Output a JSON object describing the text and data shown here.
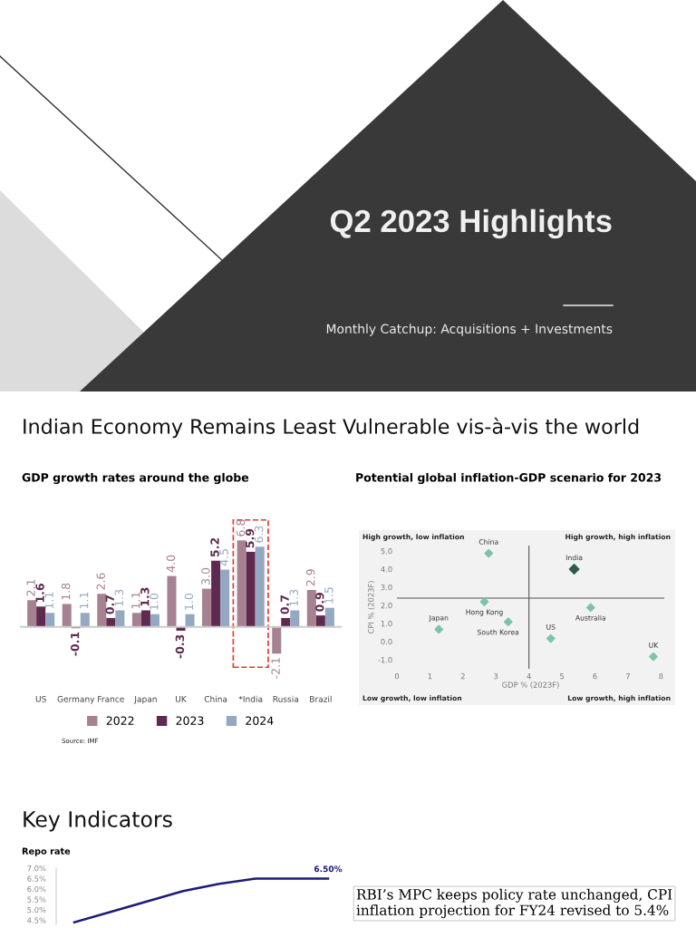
{
  "chart_data": [
    {
      "type": "other",
      "title": "Q2 2023 Highlights",
      "subtitle": "Monthly Catchup: Acquisitions + Investments",
      "annotations": [
        "Indian Economy Remains Least Vulnerable vis-à-vis the world",
        "Key Indicators"
      ]
    },
    {
      "type": "bar",
      "title": "GDP growth rates around the globe",
      "categories": [
        "US",
        "Germany",
        "France",
        "Japan",
        "UK",
        "China",
        "*India",
        "Russia",
        "Brazil"
      ],
      "series": [
        {
          "name": "2022",
          "color": "#a68290",
          "values": [
            2.1,
            1.8,
            2.6,
            1.1,
            4.0,
            3.0,
            6.8,
            -2.1,
            2.9
          ],
          "value_labels": [
            "2.1",
            "1.8",
            "2.6",
            "1.1",
            "4.0",
            "3.0",
            "6.8",
            "-2.1",
            "2.9"
          ]
        },
        {
          "name": "2023",
          "color": "#5e2a4f",
          "values": [
            1.6,
            -0.1,
            0.7,
            1.3,
            -0.3,
            5.2,
            5.9,
            0.7,
            0.9
          ],
          "value_labels": [
            "1.6",
            "-0.1",
            "0.7",
            "1.3",
            "-0.3",
            "5.2",
            "5.9",
            "0.7",
            "0.9"
          ]
        },
        {
          "name": "2024",
          "color": "#94a8c2",
          "values": [
            1.1,
            1.1,
            1.3,
            1.0,
            1.0,
            4.5,
            6.3,
            1.3,
            1.5
          ],
          "value_labels": [
            "1.1",
            "1.1",
            "1.3",
            "1.0",
            "1.0",
            "4.5",
            "6.3",
            "1.3",
            "1.5"
          ]
        }
      ],
      "legend": "bottom",
      "grid": false,
      "annotations": [
        "Source: IMF"
      ]
    },
    {
      "type": "scatter",
      "title": "Potential global inflation-GDP scenario for 2023",
      "xlabel": "GDP % (2023F)",
      "ylabel": "CPI % (2023F)",
      "x": [
        2.78,
        5.37,
        2.65,
        5.87,
        1.27,
        3.37,
        4.66,
        7.77
      ],
      "values": [
        4.87,
        4.0,
        2.2,
        1.88,
        0.68,
        1.09,
        0.17,
        -0.83
      ],
      "colors": [
        "#7cc4a6",
        "#2f5b4b",
        "#7cc4a6",
        "#7cc4a6",
        "#7cc4a6",
        "#7cc4a6",
        "#7cc4a6",
        "#7cc4a6"
      ],
      "marker": "diamond",
      "grid": false,
      "xlim": [
        0,
        8.1
      ],
      "xticks": [
        0,
        1,
        2,
        3,
        4,
        5,
        6,
        7,
        8
      ],
      "ylim": [
        -1.5,
        5.3
      ],
      "yticks": [
        {
          "value": -1,
          "label": "-1.0"
        },
        {
          "value": 0,
          "label": "0.0"
        },
        {
          "value": 1,
          "label": "1.0"
        },
        {
          "value": 2,
          "label": "2.0"
        },
        {
          "value": 3,
          "label": "3.0"
        },
        {
          "value": 4,
          "label": "4.0"
        },
        {
          "value": 5,
          "label": "5.0"
        }
      ],
      "ref_lines": [
        {
          "axis": "x",
          "value": 4,
          "color": "#555555"
        },
        {
          "axis": "y",
          "value": 2.4,
          "color": "#555555"
        }
      ],
      "annotations": [
        {
          "text": "China",
          "x": 2.78,
          "y": 4.87
        },
        {
          "text": "India",
          "x": 5.37,
          "y": 4.0
        },
        {
          "text": "Hong Kong",
          "x": 2.65,
          "y": 2.2
        },
        {
          "text": "Australia",
          "x": 5.87,
          "y": 1.88
        },
        {
          "text": "Japan",
          "x": 1.27,
          "y": 0.68
        },
        {
          "text": "South Korea",
          "x": 3.37,
          "y": 1.09
        },
        {
          "text": "US",
          "x": 4.66,
          "y": 0.17
        },
        {
          "text": "UK",
          "x": 7.77,
          "y": -0.83
        },
        "High growth, low inflation",
        "High growth, high inflation",
        "Low growth, low inflation",
        "Low growth, high inflation"
      ]
    },
    {
      "type": "line",
      "title": "Repo rate",
      "categories": [
        null,
        null,
        null,
        null,
        null,
        null,
        null,
        null
      ],
      "series": [
        {
          "color": "#1c1c78",
          "values": [
            4.4,
            4.9,
            5.4,
            5.9,
            6.25,
            6.5,
            6.5,
            6.5
          ],
          "value_labels": [
            null,
            null,
            null,
            null,
            null,
            null,
            null,
            "6.50%"
          ]
        }
      ],
      "ylim": [
        4.3,
        7.0
      ],
      "yticks": [
        {
          "value": 4.5,
          "label": "4.5%"
        },
        {
          "value": 5.0,
          "label": "5.0%"
        },
        {
          "value": 5.5,
          "label": "5.5%"
        },
        {
          "value": 6.0,
          "label": "6.0%"
        },
        {
          "value": 6.5,
          "label": "6.5%"
        },
        {
          "value": 7.0,
          "label": "7.0%"
        }
      ],
      "marker": "none",
      "grid": false,
      "annotations": [
        "RBI’s MPC keeps policy rate unchanged, CPI inflation projection for FY24 revised to 5.4%"
      ]
    }
  ]
}
